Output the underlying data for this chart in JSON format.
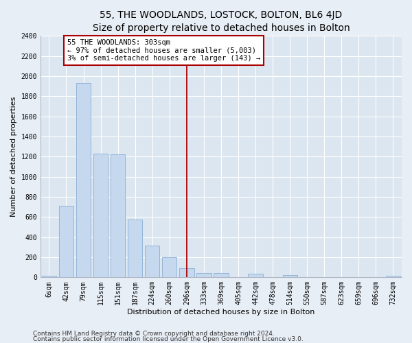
{
  "title": "55, THE WOODLANDS, LOSTOCK, BOLTON, BL6 4JD",
  "subtitle": "Size of property relative to detached houses in Bolton",
  "xlabel": "Distribution of detached houses by size in Bolton",
  "ylabel": "Number of detached properties",
  "categories": [
    "6sqm",
    "42sqm",
    "79sqm",
    "115sqm",
    "151sqm",
    "187sqm",
    "224sqm",
    "260sqm",
    "296sqm",
    "333sqm",
    "369sqm",
    "405sqm",
    "442sqm",
    "478sqm",
    "514sqm",
    "550sqm",
    "587sqm",
    "623sqm",
    "659sqm",
    "696sqm",
    "732sqm"
  ],
  "values": [
    18,
    710,
    1935,
    1230,
    1225,
    575,
    315,
    200,
    90,
    45,
    40,
    0,
    37,
    0,
    20,
    0,
    0,
    0,
    0,
    0,
    18
  ],
  "bar_color": "#c5d8ed",
  "bar_edge_color": "#8aafd4",
  "vline_x_index": 8,
  "vline_color": "#aa0000",
  "annotation_text": "55 THE WOODLANDS: 303sqm\n← 97% of detached houses are smaller (5,003)\n3% of semi-detached houses are larger (143) →",
  "annotation_box_color": "#ffffff",
  "annotation_box_edge": "#aa0000",
  "ylim": [
    0,
    2400
  ],
  "yticks": [
    0,
    200,
    400,
    600,
    800,
    1000,
    1200,
    1400,
    1600,
    1800,
    2000,
    2200,
    2400
  ],
  "bg_color": "#dce6f0",
  "fig_bg_color": "#e8eef5",
  "grid_color": "#c0cfe0",
  "footer1": "Contains HM Land Registry data © Crown copyright and database right 2024.",
  "footer2": "Contains public sector information licensed under the Open Government Licence v3.0.",
  "title_fontsize": 10,
  "subtitle_fontsize": 9,
  "label_fontsize": 8,
  "tick_fontsize": 7,
  "annotation_fontsize": 7.5,
  "footer_fontsize": 6.5
}
